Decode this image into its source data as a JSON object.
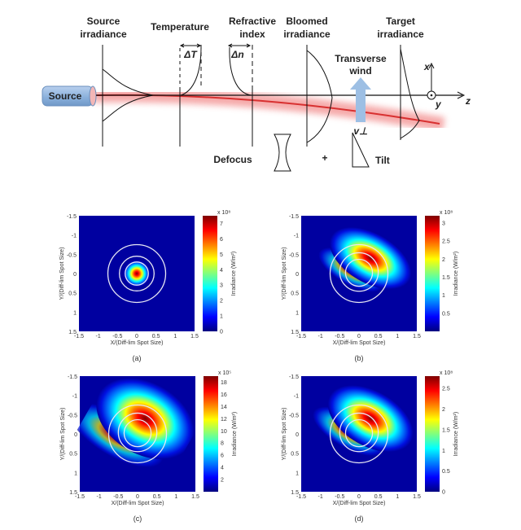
{
  "diagram": {
    "source": "Source",
    "labels": {
      "source_irradiance": [
        "Source",
        "irradiance"
      ],
      "temperature": "Temperature",
      "refractive_index": [
        "Refractive",
        "index"
      ],
      "bloomed_irradiance": [
        "Bloomed",
        "irradiance"
      ],
      "target_irradiance": [
        "Target",
        "irradiance"
      ],
      "transverse_wind": [
        "Transverse",
        "wind"
      ],
      "delta_t": "ΔT",
      "delta_n": "Δn",
      "v_perp": "v⊥",
      "defocus": "Defocus",
      "plus": "+",
      "tilt": "Tilt",
      "axis_x": "x",
      "axis_y": "y",
      "axis_z": "z"
    },
    "colors": {
      "beam": "#e23b3b",
      "source": "#8fb4de",
      "wind_arrow": "#9dbfe4"
    }
  },
  "chart_data": [
    {
      "type": "heatmap",
      "panel": "(a)",
      "xlabel": "X/(Diff-lim Spot Size)",
      "ylabel": "Y/(Diff-lim Spot Size)",
      "xlim": [
        -1.5,
        1.5
      ],
      "ylim": [
        1.5,
        -1.5
      ],
      "xticks": [
        "-1.5",
        "-1",
        "-0.5",
        "0",
        "0.5",
        "1",
        "1.5"
      ],
      "yticks": [
        "-1.5",
        "-1",
        "-0.5",
        "0",
        "0.5",
        "1",
        "1.5"
      ],
      "colorbar": {
        "label": "Irradiance (W/m²)",
        "exponent": "x 10⁸",
        "ticks": [
          "7",
          "6",
          "5",
          "4",
          "3",
          "2",
          "1",
          "0"
        ],
        "range": [
          0,
          7.5
        ]
      },
      "peak": {
        "x": 0,
        "y": 0,
        "spread": 0.18,
        "elongation": 1.0
      },
      "rings": [
        0.3,
        0.45,
        0.75
      ]
    },
    {
      "type": "heatmap",
      "panel": "(b)",
      "xlabel": "X/(Diff-lim Spot Size)",
      "ylabel": "Y/(Diff-lim Spot Size)",
      "xlim": [
        -1.5,
        1.5
      ],
      "ylim": [
        1.5,
        -1.5
      ],
      "xticks": [
        "-1.5",
        "-1",
        "-0.5",
        "0",
        "0.5",
        "1",
        "1.5"
      ],
      "yticks": [
        "-1.5",
        "-1",
        "-0.5",
        "0",
        "0.5",
        "1",
        "1.5"
      ],
      "colorbar": {
        "label": "Irradiance (W/m²)",
        "exponent": "x 10⁸",
        "ticks": [
          "3",
          "2.5",
          "2",
          "1.5",
          "1",
          "0.5"
        ],
        "range": [
          0,
          3.2
        ]
      },
      "peak": {
        "x": 0.3,
        "y": -0.4,
        "spread": 0.45,
        "elongation": 1.6
      },
      "rings": [
        0.35,
        0.5,
        0.75
      ]
    },
    {
      "type": "heatmap",
      "panel": "(c)",
      "xlabel": "X/(Diff-lim Spot Size)",
      "ylabel": "Y/(Diff-lim Spot Size)",
      "xlim": [
        -1.5,
        1.5
      ],
      "ylim": [
        1.5,
        -1.5
      ],
      "xticks": [
        "-1.5",
        "-1",
        "-0.5",
        "0",
        "0.5",
        "1",
        "1.5"
      ],
      "yticks": [
        "-1.5",
        "-1",
        "-0.5",
        "0",
        "0.5",
        "1",
        "1.5"
      ],
      "colorbar": {
        "label": "Irradiance (W/m²)",
        "exponent": "x 10⁵",
        "ticks": [
          "18",
          "16",
          "14",
          "12",
          "10",
          "8",
          "6",
          "4",
          "2"
        ],
        "range": [
          0,
          19
        ]
      },
      "peak": {
        "x": 0.2,
        "y": -0.4,
        "spread": 0.65,
        "elongation": 1.3
      },
      "rings": [
        0.35,
        0.5,
        0.75
      ]
    },
    {
      "type": "heatmap",
      "panel": "(d)",
      "xlabel": "X/(Diff-lim Spot Size)",
      "ylabel": "Y/(Diff-lim Spot Size)",
      "xlim": [
        -1.5,
        1.5
      ],
      "ylim": [
        1.5,
        -1.5
      ],
      "xticks": [
        "-1.5",
        "-1",
        "-0.5",
        "0",
        "0.5",
        "1",
        "1.5"
      ],
      "yticks": [
        "-1.5",
        "-1",
        "-0.5",
        "0",
        "0.5",
        "1",
        "1.5"
      ],
      "colorbar": {
        "label": "Irradiance (W/m²)",
        "exponent": "x 10⁸",
        "ticks": [
          "2.5",
          "2",
          "1.5",
          "1",
          "0.5",
          "0"
        ],
        "range": [
          0,
          2.8
        ]
      },
      "peak": {
        "x": 0.3,
        "y": -0.4,
        "spread": 0.5,
        "elongation": 1.5
      },
      "rings": [
        0.35,
        0.5,
        0.75
      ]
    }
  ]
}
